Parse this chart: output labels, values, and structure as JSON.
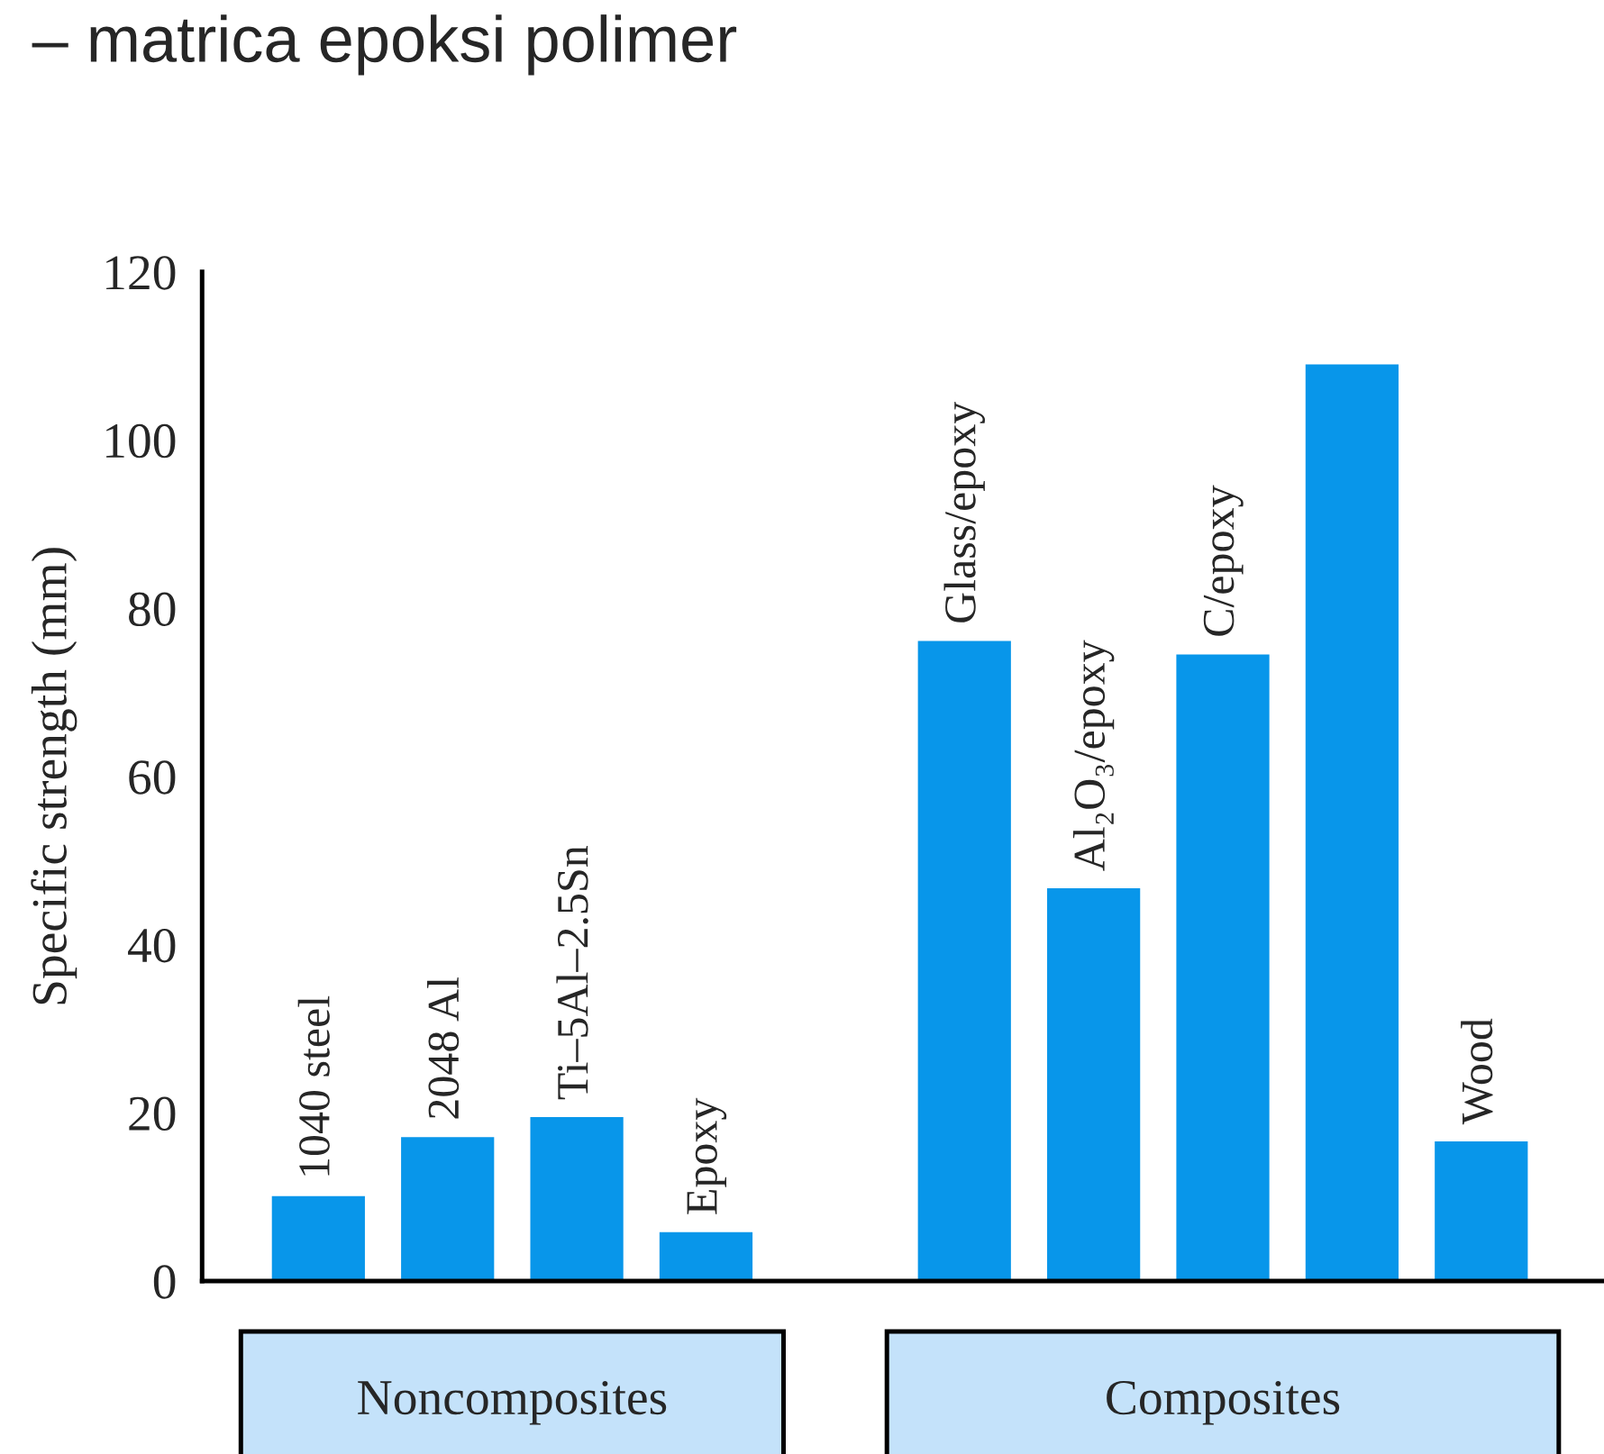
{
  "chart_data": {
    "type": "bar",
    "title": "– matrica epoksi polimer",
    "ylabel": "Specific strength (mm)",
    "categories": [
      "1040 steel",
      "2048 Al",
      "Ti–5Al–2.5Sn",
      "Epoxy",
      null,
      "Glass/epoxy",
      "Al₂O₃/epoxy",
      "C/epoxy",
      null,
      "Wood"
    ],
    "values": [
      10.1,
      17.1,
      19.5,
      5.8,
      null,
      76.1,
      46.7,
      74.5,
      109,
      16.6
    ],
    "color": "#0896ea",
    "ylim": [
      0,
      120
    ],
    "yticks": [
      0,
      20,
      40,
      60,
      80,
      100,
      120
    ],
    "annotations": [
      "Noncomposites",
      "Composites"
    ],
    "grid": false,
    "legend": false
  }
}
